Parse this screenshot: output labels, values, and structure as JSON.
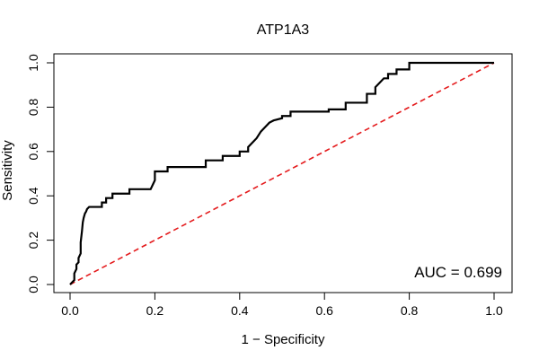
{
  "chart_data": {
    "type": "line",
    "title": "ATP1A3",
    "xlabel": "1 − Specificity",
    "ylabel": "Sensitivity",
    "xlim": [
      0.0,
      1.0
    ],
    "ylim": [
      0.0,
      1.0
    ],
    "x_ticks": [
      0.0,
      0.2,
      0.4,
      0.6,
      0.8,
      1.0
    ],
    "x_tick_labels": [
      "0.0",
      "0.2",
      "0.4",
      "0.6",
      "0.8",
      "1.0"
    ],
    "y_ticks": [
      0.0,
      0.2,
      0.4,
      0.6,
      0.8,
      1.0
    ],
    "y_tick_labels": [
      "0.0",
      "0.2",
      "0.4",
      "0.6",
      "0.8",
      "1.0"
    ],
    "grid": false,
    "annotation": "AUC = 0.699",
    "series": [
      {
        "name": "ROC curve",
        "color": "#000000",
        "x": [
          0.0,
          0.01,
          0.01,
          0.015,
          0.015,
          0.02,
          0.02,
          0.025,
          0.025,
          0.028,
          0.03,
          0.032,
          0.035,
          0.038,
          0.04,
          0.045,
          0.05,
          0.05,
          0.075,
          0.075,
          0.085,
          0.085,
          0.1,
          0.1,
          0.14,
          0.14,
          0.19,
          0.195,
          0.2,
          0.2,
          0.23,
          0.23,
          0.32,
          0.32,
          0.36,
          0.36,
          0.4,
          0.4,
          0.42,
          0.42,
          0.44,
          0.45,
          0.46,
          0.47,
          0.48,
          0.5,
          0.5,
          0.52,
          0.52,
          0.61,
          0.61,
          0.65,
          0.65,
          0.7,
          0.7,
          0.72,
          0.72,
          0.73,
          0.74,
          0.75,
          0.75,
          0.77,
          0.77,
          0.8,
          0.8,
          1.0
        ],
        "y": [
          0.0,
          0.02,
          0.05,
          0.07,
          0.09,
          0.1,
          0.12,
          0.14,
          0.19,
          0.24,
          0.28,
          0.3,
          0.32,
          0.33,
          0.34,
          0.35,
          0.35,
          0.35,
          0.35,
          0.37,
          0.37,
          0.39,
          0.39,
          0.41,
          0.41,
          0.43,
          0.43,
          0.45,
          0.47,
          0.51,
          0.51,
          0.53,
          0.53,
          0.56,
          0.56,
          0.58,
          0.58,
          0.6,
          0.6,
          0.62,
          0.66,
          0.69,
          0.71,
          0.73,
          0.74,
          0.75,
          0.76,
          0.76,
          0.78,
          0.78,
          0.79,
          0.79,
          0.82,
          0.82,
          0.86,
          0.86,
          0.89,
          0.91,
          0.93,
          0.93,
          0.95,
          0.95,
          0.97,
          0.97,
          1.0,
          1.0
        ]
      },
      {
        "name": "Reference diagonal",
        "color": "#e41a1c",
        "x": [
          0.0,
          1.0
        ],
        "y": [
          0.0,
          1.0
        ]
      }
    ]
  }
}
